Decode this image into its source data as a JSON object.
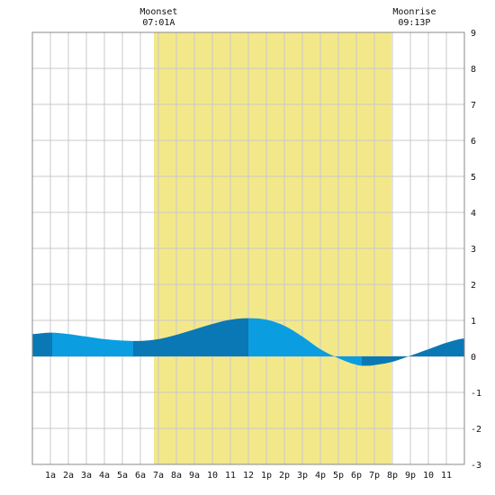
{
  "chart_data": {
    "type": "area",
    "title": "",
    "xlabel": "",
    "ylabel": "",
    "xlim": [
      0,
      24
    ],
    "ylim": [
      -3,
      9
    ],
    "x_ticks": [
      {
        "x": 1,
        "label": "1a"
      },
      {
        "x": 2,
        "label": "2a"
      },
      {
        "x": 3,
        "label": "3a"
      },
      {
        "x": 4,
        "label": "4a"
      },
      {
        "x": 5,
        "label": "5a"
      },
      {
        "x": 6,
        "label": "6a"
      },
      {
        "x": 7,
        "label": "7a"
      },
      {
        "x": 8,
        "label": "8a"
      },
      {
        "x": 9,
        "label": "9a"
      },
      {
        "x": 10,
        "label": "10"
      },
      {
        "x": 11,
        "label": "11"
      },
      {
        "x": 12,
        "label": "12"
      },
      {
        "x": 13,
        "label": "1p"
      },
      {
        "x": 14,
        "label": "2p"
      },
      {
        "x": 15,
        "label": "3p"
      },
      {
        "x": 16,
        "label": "4p"
      },
      {
        "x": 17,
        "label": "5p"
      },
      {
        "x": 18,
        "label": "6p"
      },
      {
        "x": 19,
        "label": "7p"
      },
      {
        "x": 20,
        "label": "8p"
      },
      {
        "x": 21,
        "label": "9p"
      },
      {
        "x": 22,
        "label": "10"
      },
      {
        "x": 23,
        "label": "11"
      }
    ],
    "y_ticks": [
      -3,
      -2,
      -1,
      0,
      1,
      2,
      3,
      4,
      5,
      6,
      7,
      8,
      9
    ],
    "grid": true,
    "daylight": {
      "start": 6.75,
      "end": 19.95
    },
    "annotations": [
      {
        "label": "Moonset",
        "time": "07:01A",
        "x": 7.02
      },
      {
        "label": "Moonrise",
        "time": "09:13P",
        "x": 21.22
      }
    ],
    "tide_curve": {
      "x": [
        0,
        1,
        2,
        3,
        4,
        5,
        6,
        7,
        8,
        9,
        10,
        11,
        12,
        13,
        14,
        15,
        16,
        17,
        18,
        18.5,
        19,
        20,
        21,
        22,
        23,
        24
      ],
      "y": [
        0.62,
        0.66,
        0.62,
        0.55,
        0.48,
        0.44,
        0.43,
        0.48,
        0.6,
        0.75,
        0.9,
        1.02,
        1.06,
        1.02,
        0.85,
        0.55,
        0.2,
        -0.05,
        -0.23,
        -0.26,
        -0.24,
        -0.15,
        0.02,
        0.2,
        0.38,
        0.5
      ]
    },
    "bands": [
      {
        "x0": 0,
        "x1": 1.1,
        "shade": "dark"
      },
      {
        "x0": 1.1,
        "x1": 5.6,
        "shade": "light"
      },
      {
        "x0": 5.6,
        "x1": 12.0,
        "shade": "dark"
      },
      {
        "x0": 12.0,
        "x1": 18.3,
        "shade": "light"
      },
      {
        "x0": 18.3,
        "x1": 24,
        "shade": "dark"
      }
    ],
    "colors": {
      "background": "#ffffff",
      "grid": "#c9c9c9",
      "daylight": "#f2e88a",
      "tide_light": "#0a9de0",
      "tide_dark": "#0a78b4"
    }
  }
}
